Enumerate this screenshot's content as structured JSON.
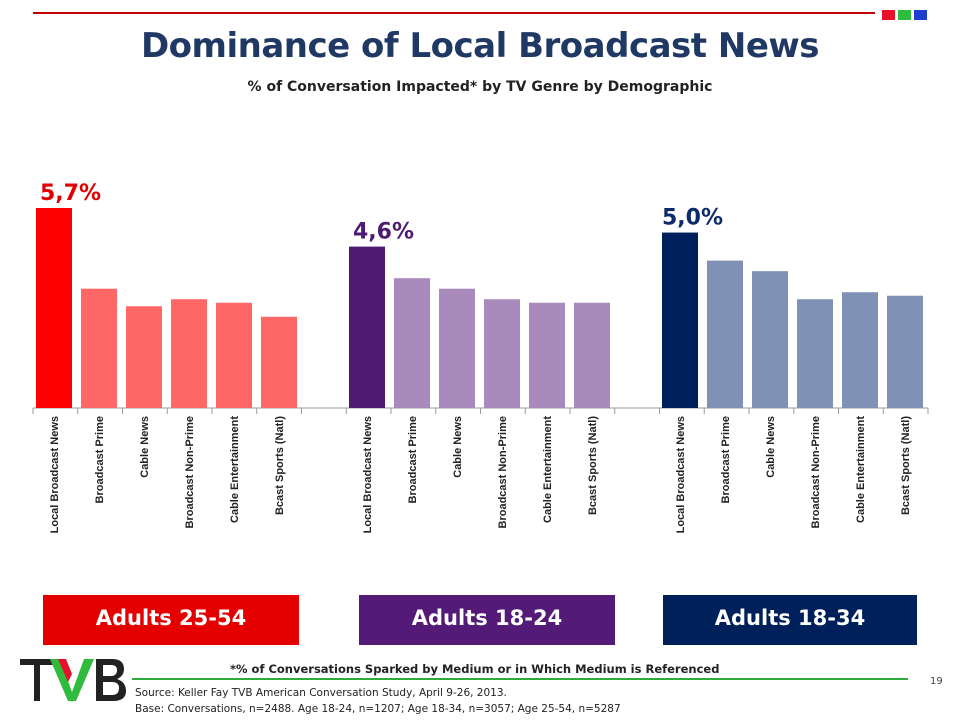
{
  "header": {
    "title": "Dominance of Local Broadcast News",
    "subtitle": "% of Conversation Impacted* by TV Genre by Demographic",
    "accent_squares": [
      "#e8102a",
      "#2fbb3b",
      "#1f3fcf"
    ]
  },
  "chart_data": {
    "type": "bar",
    "title": "Dominance of Local Broadcast News",
    "subtitle": "% of Conversation Impacted* by TV Genre by Demographic",
    "categories": [
      "Local Broadcast News",
      "Broadcast Prime",
      "Cable News",
      "Broadcast Non-Prime",
      "Cable Entertainment",
      "Bcast Sports (Natl)"
    ],
    "ylim": [
      0,
      5.7
    ],
    "grid": false,
    "legend": "none",
    "groups": [
      {
        "label": "Adults 25-54",
        "values": [
          5.7,
          3.4,
          2.9,
          3.1,
          3.0,
          2.6
        ],
        "data_label": "5,7%",
        "highlight_color": "#ff0000",
        "bar_color": "#ff6666",
        "box_color": "#e50000",
        "label_color": "#e00000"
      },
      {
        "label": "Adults 18-24",
        "values": [
          4.6,
          3.7,
          3.4,
          3.1,
          3.0,
          3.0
        ],
        "data_label": "4,6%",
        "highlight_color": "#4e1a72",
        "bar_color": "#a98abd",
        "box_color": "#531a78",
        "label_color": "#4e1a72"
      },
      {
        "label": "Adults 18-34",
        "values": [
          5.0,
          4.2,
          3.9,
          3.1,
          3.3,
          3.2
        ],
        "data_label": "5,0%",
        "highlight_color": "#00205b",
        "bar_color": "#7f91b4",
        "box_color": "#00205b",
        "label_color": "#0d2a6b"
      }
    ]
  },
  "footer": {
    "footnote": "*% of Conversations Sparked by Medium or in Which Medium is Referenced",
    "source": "Source: Keller Fay TVB American Conversation Study, April 9-26, 2013.",
    "base": "Base: Conversations, n=2488.   Age 18-24, n=1207; Age 18-34, n=3057; Age 25-54, n=5287",
    "page_number": "19",
    "logo_text": "TVB"
  }
}
